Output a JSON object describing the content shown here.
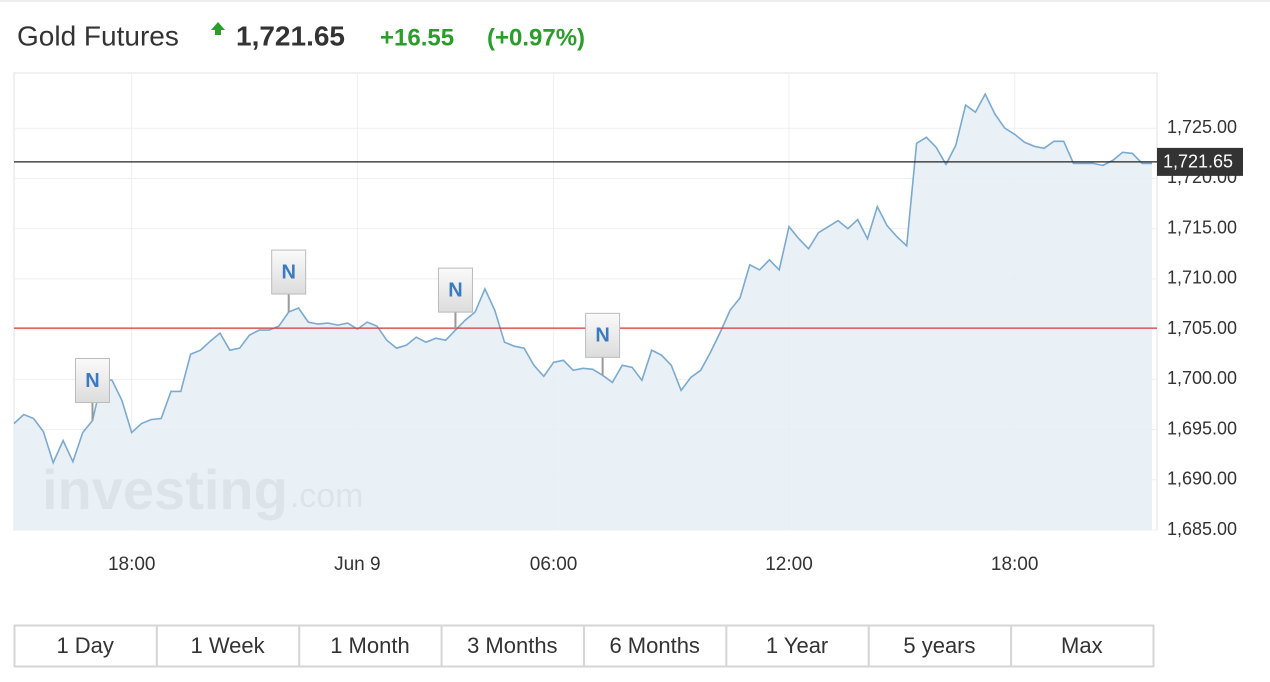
{
  "chart_data": {
    "type": "area",
    "title": "Gold Futures",
    "last_price": {
      "value": 1721.65,
      "label": "1,721.65"
    },
    "change": "+16.55",
    "change_percent": "(+0.97%)",
    "reference_line": 1705.1,
    "line_color": "#7aaad2",
    "fill_color": "#e6eef4",
    "grid": true,
    "values": [
      1695.6,
      1696.5,
      1696.1,
      1694.8,
      1691.7,
      1693.9,
      1691.8,
      1694.7,
      1695.9,
      1700.1,
      1699.9,
      1697.9,
      1694.7,
      1695.6,
      1696.0,
      1696.1,
      1698.8,
      1698.8,
      1702.5,
      1702.9,
      1703.8,
      1704.6,
      1702.9,
      1703.1,
      1704.4,
      1704.9,
      1704.9,
      1705.3,
      1706.7,
      1707.1,
      1705.7,
      1705.5,
      1705.6,
      1705.4,
      1705.6,
      1705.0,
      1705.7,
      1705.3,
      1703.9,
      1703.1,
      1703.4,
      1704.2,
      1703.7,
      1704.1,
      1703.9,
      1704.9,
      1705.9,
      1706.7,
      1709.0,
      1706.9,
      1703.7,
      1703.3,
      1703.1,
      1701.4,
      1700.3,
      1701.7,
      1701.9,
      1700.9,
      1701.1,
      1701.0,
      1700.4,
      1699.7,
      1701.4,
      1701.2,
      1699.9,
      1702.9,
      1702.4,
      1701.4,
      1698.9,
      1700.2,
      1700.9,
      1702.7,
      1704.7,
      1706.9,
      1708.1,
      1711.4,
      1710.9,
      1711.9,
      1710.9,
      1715.2,
      1714.0,
      1713.0,
      1714.6,
      1715.2,
      1715.8,
      1715.0,
      1715.9,
      1714.0,
      1717.2,
      1715.3,
      1714.2,
      1713.3,
      1723.5,
      1724.1,
      1723.1,
      1721.4,
      1723.3,
      1727.3,
      1726.6,
      1728.4,
      1726.4,
      1725.0,
      1724.4,
      1723.6,
      1723.2,
      1723.0,
      1723.7,
      1723.7,
      1721.5,
      1721.5,
      1721.5,
      1721.3,
      1721.8,
      1722.6,
      1722.5,
      1721.5,
      1721.5
    ],
    "xlim": [
      0,
      116
    ],
    "xticks": [
      {
        "value": 12,
        "label": "18:00"
      },
      {
        "value": 35,
        "label": "Jun 9"
      },
      {
        "value": 55,
        "label": "06:00"
      },
      {
        "value": 79,
        "label": "12:00"
      },
      {
        "value": 102,
        "label": "18:00"
      }
    ],
    "ylim": [
      1685,
      1730.5
    ],
    "yticks": [
      {
        "value": 1685,
        "label": "1,685.00"
      },
      {
        "value": 1690,
        "label": "1,690.00"
      },
      {
        "value": 1695,
        "label": "1,695.00"
      },
      {
        "value": 1700,
        "label": "1,700.00"
      },
      {
        "value": 1705,
        "label": "1,705.00"
      },
      {
        "value": 1710,
        "label": "1,710.00"
      },
      {
        "value": 1715,
        "label": "1,715.00"
      },
      {
        "value": 1720,
        "label": "1,720.00"
      },
      {
        "value": 1725,
        "label": "1,725.00"
      }
    ],
    "news_markers": [
      {
        "index": 8,
        "label": "N"
      },
      {
        "index": 28,
        "label": "N"
      },
      {
        "index": 45,
        "label": "N"
      },
      {
        "index": 60,
        "label": "N"
      }
    ],
    "watermark_brand": "investing",
    "watermark_suffix": ".com",
    "ranges": [
      "1 Day",
      "1 Week",
      "1 Month",
      "3 Months",
      "6 Months",
      "1 Year",
      "5 years",
      "Max"
    ]
  }
}
